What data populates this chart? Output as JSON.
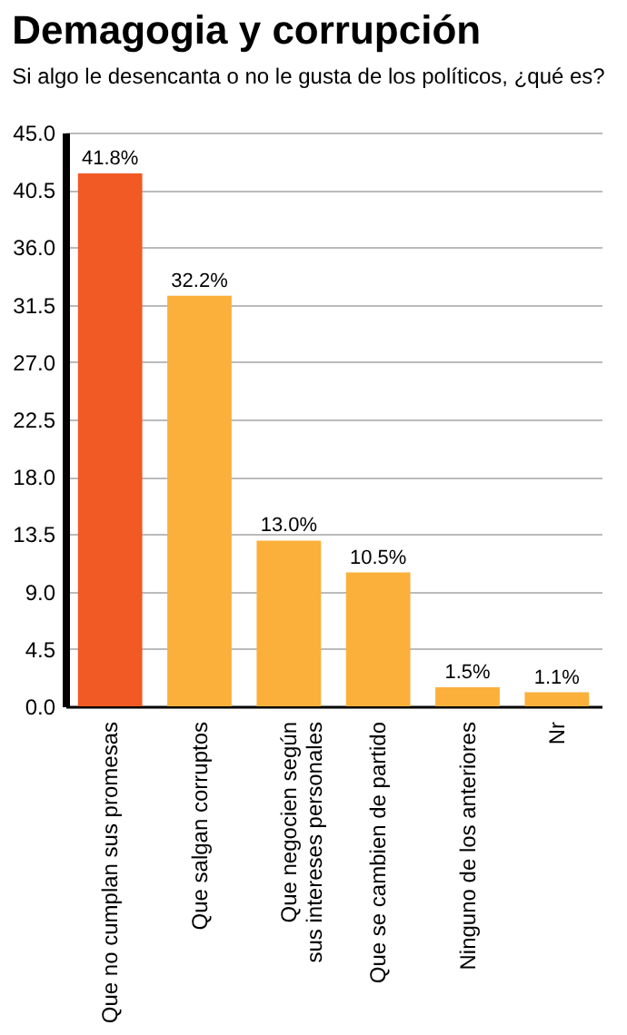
{
  "chart_data": {
    "type": "bar",
    "title": "Demagogia  y corrupción",
    "subtitle": "Si algo le desencanta o no le gusta de los políticos, ¿qué es?",
    "categories": [
      "Que no cumplan sus promesas",
      "Que salgan corruptos",
      "Que negocien según\nsus intereses personales",
      "Que se cambien de partido",
      "Ninguno de los anteriores",
      "Nr"
    ],
    "values": [
      41.8,
      32.2,
      13.0,
      10.5,
      1.5,
      1.1
    ],
    "value_labels": [
      "41.8%",
      "32.2%",
      "13.0%",
      "10.5%",
      "1.5%",
      "1.1%"
    ],
    "colors": [
      "#f15a24",
      "#fbb03b",
      "#fbb03b",
      "#fbb03b",
      "#fbb03b",
      "#fbb03b"
    ],
    "ylim": [
      0,
      45
    ],
    "yticks": [
      {
        "value": 0,
        "label": "0.0"
      },
      {
        "value": 4.5,
        "label": "4.5"
      },
      {
        "value": 9,
        "label": "9.0"
      },
      {
        "value": 13.5,
        "label": "13.5"
      },
      {
        "value": 18,
        "label": "18.0"
      },
      {
        "value": 22.5,
        "label": "22.5"
      },
      {
        "value": 27,
        "label": "27.0"
      },
      {
        "value": 31.5,
        "label": "31.5"
      },
      {
        "value": 36,
        "label": "36.0"
      },
      {
        "value": 40.5,
        "label": "40.5"
      },
      {
        "value": 45,
        "label": "45.0"
      }
    ],
    "grid": "y"
  }
}
